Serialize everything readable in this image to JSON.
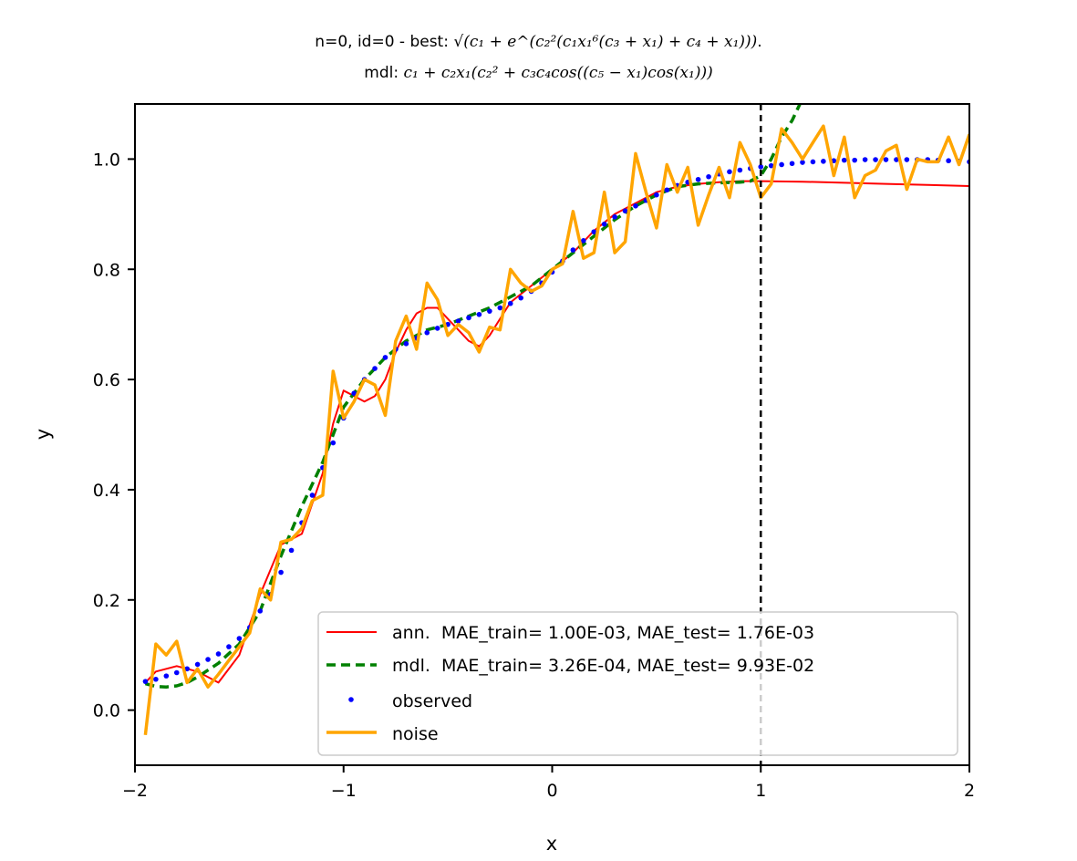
{
  "chart_data": {
    "type": "line",
    "title_line1_prefix": "n=0, id=0 - best: ",
    "title_line1_formula": "√(c₁ + e^(c₂²(c₁x₁⁶(c₃ + x₁) + c₄ + x₁)))",
    "title_line1_suffix": ".",
    "title_line2_prefix": "mdl: ",
    "title_line2_formula": "c₁ + c₂x₁(c₂² + c₃c₄cos((c₅ − x₁)cos(x₁)))",
    "xlabel": "x",
    "ylabel": "y",
    "xlim": [
      -2,
      2
    ],
    "ylim": [
      -0.1,
      1.1
    ],
    "xticks": [
      -2,
      -1,
      0,
      1,
      2
    ],
    "xtick_labels": [
      "−2",
      "−1",
      "0",
      "1",
      "2"
    ],
    "yticks": [
      0.0,
      0.2,
      0.4,
      0.6,
      0.8,
      1.0
    ],
    "ytick_labels": [
      "0.0",
      "0.2",
      "0.4",
      "0.6",
      "0.8",
      "1.0"
    ],
    "vline_x": 1.0,
    "legend_position": "lower-right",
    "series": [
      {
        "name": "ann.  MAE_train= 1.00E-03, MAE_test= 1.76E-03",
        "color": "#ff0000",
        "style": "solid",
        "x": [
          -1.95,
          -1.9,
          -1.8,
          -1.7,
          -1.6,
          -1.5,
          -1.4,
          -1.3,
          -1.2,
          -1.1,
          -1.05,
          -1.0,
          -0.95,
          -0.9,
          -0.85,
          -0.8,
          -0.75,
          -0.7,
          -0.65,
          -0.6,
          -0.55,
          -0.5,
          -0.45,
          -0.4,
          -0.35,
          -0.3,
          -0.25,
          -0.2,
          -0.1,
          0.0,
          0.1,
          0.2,
          0.3,
          0.4,
          0.5,
          0.6,
          0.7,
          0.8,
          0.9,
          1.0,
          1.2,
          1.4,
          1.6,
          1.8,
          2.0
        ],
        "y": [
          0.05,
          0.07,
          0.08,
          0.07,
          0.05,
          0.1,
          0.21,
          0.3,
          0.32,
          0.43,
          0.52,
          0.58,
          0.57,
          0.56,
          0.57,
          0.6,
          0.65,
          0.69,
          0.72,
          0.73,
          0.73,
          0.71,
          0.69,
          0.67,
          0.66,
          0.68,
          0.71,
          0.74,
          0.77,
          0.8,
          0.83,
          0.87,
          0.9,
          0.92,
          0.94,
          0.95,
          0.955,
          0.958,
          0.96,
          0.96,
          0.959,
          0.957,
          0.955,
          0.953,
          0.951
        ]
      },
      {
        "name": "mdl.  MAE_train= 3.26E-04, MAE_test= 9.93E-02",
        "color": "#008000",
        "style": "dashed",
        "x": [
          -1.95,
          -1.9,
          -1.85,
          -1.8,
          -1.75,
          -1.7,
          -1.6,
          -1.5,
          -1.4,
          -1.3,
          -1.2,
          -1.1,
          -1.0,
          -0.9,
          -0.8,
          -0.7,
          -0.6,
          -0.5,
          -0.4,
          -0.3,
          -0.2,
          -0.1,
          0.0,
          0.1,
          0.2,
          0.3,
          0.4,
          0.5,
          0.6,
          0.7,
          0.8,
          0.9,
          0.95,
          1.0,
          1.05,
          1.1,
          1.15,
          1.2
        ],
        "y": [
          0.048,
          0.043,
          0.042,
          0.044,
          0.05,
          0.06,
          0.085,
          0.12,
          0.18,
          0.28,
          0.37,
          0.45,
          0.55,
          0.6,
          0.64,
          0.67,
          0.69,
          0.7,
          0.715,
          0.73,
          0.75,
          0.77,
          0.8,
          0.83,
          0.86,
          0.89,
          0.915,
          0.935,
          0.95,
          0.955,
          0.957,
          0.958,
          0.96,
          0.97,
          1.0,
          1.04,
          1.07,
          1.11
        ]
      },
      {
        "name": "observed",
        "color": "#0000ff",
        "style": "dots",
        "x": [
          -1.95,
          -1.9,
          -1.85,
          -1.8,
          -1.75,
          -1.7,
          -1.65,
          -1.6,
          -1.55,
          -1.5,
          -1.45,
          -1.4,
          -1.35,
          -1.3,
          -1.25,
          -1.2,
          -1.15,
          -1.1,
          -1.05,
          -1.0,
          -0.95,
          -0.9,
          -0.85,
          -0.8,
          -0.75,
          -0.7,
          -0.65,
          -0.6,
          -0.55,
          -0.5,
          -0.45,
          -0.4,
          -0.35,
          -0.3,
          -0.25,
          -0.2,
          -0.15,
          -0.1,
          -0.05,
          0.0,
          0.05,
          0.1,
          0.15,
          0.2,
          0.25,
          0.3,
          0.35,
          0.4,
          0.45,
          0.5,
          0.55,
          0.6,
          0.65,
          0.7,
          0.75,
          0.8,
          0.85,
          0.9,
          0.95,
          1.0,
          1.05,
          1.1,
          1.15,
          1.2,
          1.25,
          1.3,
          1.35,
          1.4,
          1.45,
          1.5,
          1.55,
          1.6,
          1.65,
          1.7,
          1.75,
          1.8,
          1.85,
          1.9,
          1.95,
          2.0
        ],
        "y": [
          0.052,
          0.056,
          0.062,
          0.068,
          0.075,
          0.083,
          0.092,
          0.102,
          0.115,
          0.13,
          0.15,
          0.18,
          0.21,
          0.25,
          0.29,
          0.34,
          0.39,
          0.44,
          0.485,
          0.53,
          0.575,
          0.6,
          0.62,
          0.64,
          0.655,
          0.665,
          0.675,
          0.685,
          0.693,
          0.7,
          0.706,
          0.712,
          0.718,
          0.724,
          0.73,
          0.738,
          0.748,
          0.76,
          0.775,
          0.795,
          0.815,
          0.835,
          0.852,
          0.868,
          0.882,
          0.895,
          0.906,
          0.915,
          0.925,
          0.935,
          0.944,
          0.952,
          0.958,
          0.963,
          0.968,
          0.973,
          0.977,
          0.98,
          0.983,
          0.986,
          0.988,
          0.99,
          0.992,
          0.994,
          0.995,
          0.996,
          0.997,
          0.998,
          0.998,
          0.999,
          0.999,
          0.999,
          0.999,
          0.999,
          0.999,
          0.999,
          0.998,
          0.997,
          0.996,
          0.995
        ]
      },
      {
        "name": "noise",
        "color": "#ffa500",
        "style": "solid",
        "x": [
          -1.95,
          -1.9,
          -1.85,
          -1.8,
          -1.75,
          -1.7,
          -1.65,
          -1.6,
          -1.55,
          -1.5,
          -1.45,
          -1.4,
          -1.35,
          -1.3,
          -1.25,
          -1.2,
          -1.15,
          -1.1,
          -1.05,
          -1.0,
          -0.95,
          -0.9,
          -0.85,
          -0.8,
          -0.75,
          -0.7,
          -0.65,
          -0.6,
          -0.55,
          -0.5,
          -0.45,
          -0.4,
          -0.35,
          -0.3,
          -0.25,
          -0.2,
          -0.15,
          -0.1,
          -0.05,
          0.0,
          0.05,
          0.1,
          0.15,
          0.2,
          0.25,
          0.3,
          0.35,
          0.4,
          0.45,
          0.5,
          0.55,
          0.6,
          0.65,
          0.7,
          0.75,
          0.8,
          0.85,
          0.9,
          0.95,
          1.0,
          1.05,
          1.1,
          1.15,
          1.2,
          1.25,
          1.3,
          1.35,
          1.4,
          1.45,
          1.5,
          1.55,
          1.6,
          1.65,
          1.7,
          1.75,
          1.8,
          1.85,
          1.9,
          1.95,
          2.0
        ],
        "y": [
          -0.045,
          0.12,
          0.1,
          0.125,
          0.05,
          0.075,
          0.042,
          0.065,
          0.09,
          0.115,
          0.14,
          0.22,
          0.2,
          0.305,
          0.31,
          0.33,
          0.38,
          0.39,
          0.615,
          0.53,
          0.56,
          0.6,
          0.59,
          0.535,
          0.67,
          0.715,
          0.655,
          0.775,
          0.745,
          0.68,
          0.7,
          0.685,
          0.65,
          0.695,
          0.69,
          0.8,
          0.775,
          0.76,
          0.77,
          0.8,
          0.81,
          0.905,
          0.82,
          0.83,
          0.94,
          0.83,
          0.85,
          1.01,
          0.94,
          0.875,
          0.99,
          0.94,
          0.985,
          0.88,
          0.935,
          0.985,
          0.93,
          1.03,
          0.99,
          0.93,
          0.955,
          1.055,
          1.03,
          1.0,
          1.03,
          1.06,
          0.97,
          1.04,
          0.93,
          0.97,
          0.98,
          1.015,
          1.025,
          0.945,
          1.0,
          0.995,
          0.995,
          1.04,
          0.99,
          1.045
        ]
      }
    ]
  }
}
